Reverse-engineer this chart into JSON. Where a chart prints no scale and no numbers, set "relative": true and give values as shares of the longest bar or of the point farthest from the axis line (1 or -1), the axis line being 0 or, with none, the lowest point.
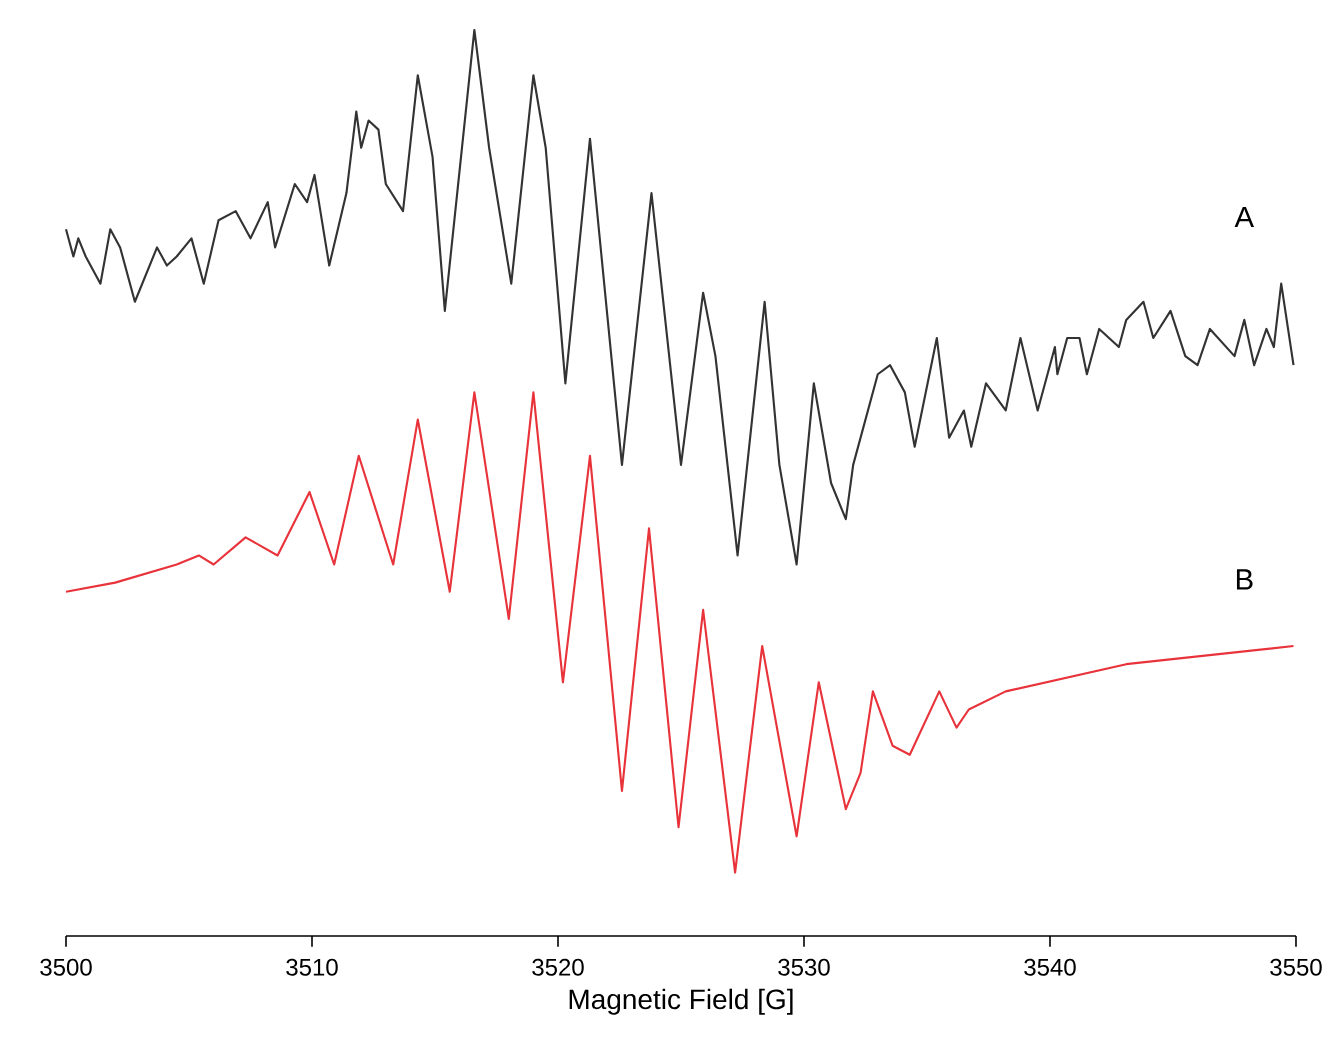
{
  "chart_data": {
    "type": "line",
    "xlabel": "Magnetic Field [G]",
    "relative": true,
    "xlim": [
      3500,
      3550
    ],
    "xticks": [
      3500,
      3510,
      3520,
      3530,
      3540,
      3550
    ],
    "series": [
      {
        "name": "A",
        "color": "#333333",
        "x": [
          3500.0,
          3500.3,
          3500.5,
          3500.8,
          3501.4,
          3501.8,
          3502.2,
          3502.8,
          3503.7,
          3504.1,
          3504.5,
          3505.1,
          3505.6,
          3506.2,
          3506.9,
          3507.5,
          3508.2,
          3508.5,
          3509.3,
          3509.8,
          3510.1,
          3510.7,
          3511.4,
          3511.8,
          3512.0,
          3512.3,
          3512.7,
          3513.0,
          3513.7,
          3514.3,
          3514.9,
          3515.4,
          3516.6,
          3517.2,
          3518.1,
          3519.0,
          3519.5,
          3520.3,
          3521.3,
          3522.6,
          3523.8,
          3525.0,
          3525.9,
          3526.4,
          3527.3,
          3528.4,
          3529.0,
          3529.7,
          3530.4,
          3531.1,
          3531.7,
          3532.0,
          3533.0,
          3533.5,
          3534.1,
          3534.5,
          3535.4,
          3535.9,
          3536.5,
          3536.8,
          3537.4,
          3538.2,
          3538.8,
          3539.5,
          3540.2,
          3540.3,
          3540.7,
          3541.2,
          3541.5,
          3542.0,
          3542.8,
          3543.1,
          3543.8,
          3544.2,
          3544.9,
          3545.5,
          3546.0,
          3546.5,
          3547.5,
          3547.9,
          3548.3,
          3548.8,
          3549.1,
          3549.4,
          3549.9
        ],
        "values": [
          0.78,
          0.75,
          0.77,
          0.75,
          0.72,
          0.78,
          0.76,
          0.7,
          0.76,
          0.74,
          0.75,
          0.77,
          0.72,
          0.79,
          0.8,
          0.77,
          0.81,
          0.76,
          0.83,
          0.81,
          0.84,
          0.74,
          0.82,
          0.91,
          0.87,
          0.9,
          0.89,
          0.83,
          0.8,
          0.95,
          0.86,
          0.69,
          1.0,
          0.87,
          0.72,
          0.95,
          0.87,
          0.61,
          0.88,
          0.52,
          0.82,
          0.52,
          0.71,
          0.64,
          0.42,
          0.7,
          0.52,
          0.41,
          0.61,
          0.5,
          0.46,
          0.52,
          0.62,
          0.63,
          0.6,
          0.54,
          0.66,
          0.55,
          0.58,
          0.54,
          0.61,
          0.58,
          0.66,
          0.58,
          0.65,
          0.62,
          0.66,
          0.66,
          0.62,
          0.67,
          0.65,
          0.68,
          0.7,
          0.66,
          0.69,
          0.64,
          0.63,
          0.67,
          0.64,
          0.68,
          0.63,
          0.67,
          0.65,
          0.72,
          0.63
        ]
      },
      {
        "name": "B",
        "color": "#e8333b",
        "x": [
          3500.0,
          3502.0,
          3504.5,
          3505.4,
          3506.0,
          3507.3,
          3508.6,
          3509.9,
          3510.9,
          3511.9,
          3513.3,
          3514.3,
          3515.6,
          3516.6,
          3518.0,
          3519.0,
          3520.2,
          3521.3,
          3522.6,
          3523.7,
          3524.9,
          3525.9,
          3527.2,
          3528.3,
          3529.7,
          3530.6,
          3531.7,
          3532.3,
          3532.8,
          3533.6,
          3534.3,
          3535.5,
          3536.2,
          3536.7,
          3538.2,
          3543.1,
          3549.9
        ],
        "values": [
          0.38,
          0.39,
          0.41,
          0.42,
          0.41,
          0.44,
          0.42,
          0.49,
          0.41,
          0.53,
          0.41,
          0.57,
          0.38,
          0.6,
          0.35,
          0.6,
          0.28,
          0.53,
          0.16,
          0.45,
          0.12,
          0.36,
          0.07,
          0.32,
          0.11,
          0.28,
          0.14,
          0.18,
          0.27,
          0.21,
          0.2,
          0.27,
          0.23,
          0.25,
          0.27,
          0.3,
          0.32
        ]
      }
    ]
  }
}
